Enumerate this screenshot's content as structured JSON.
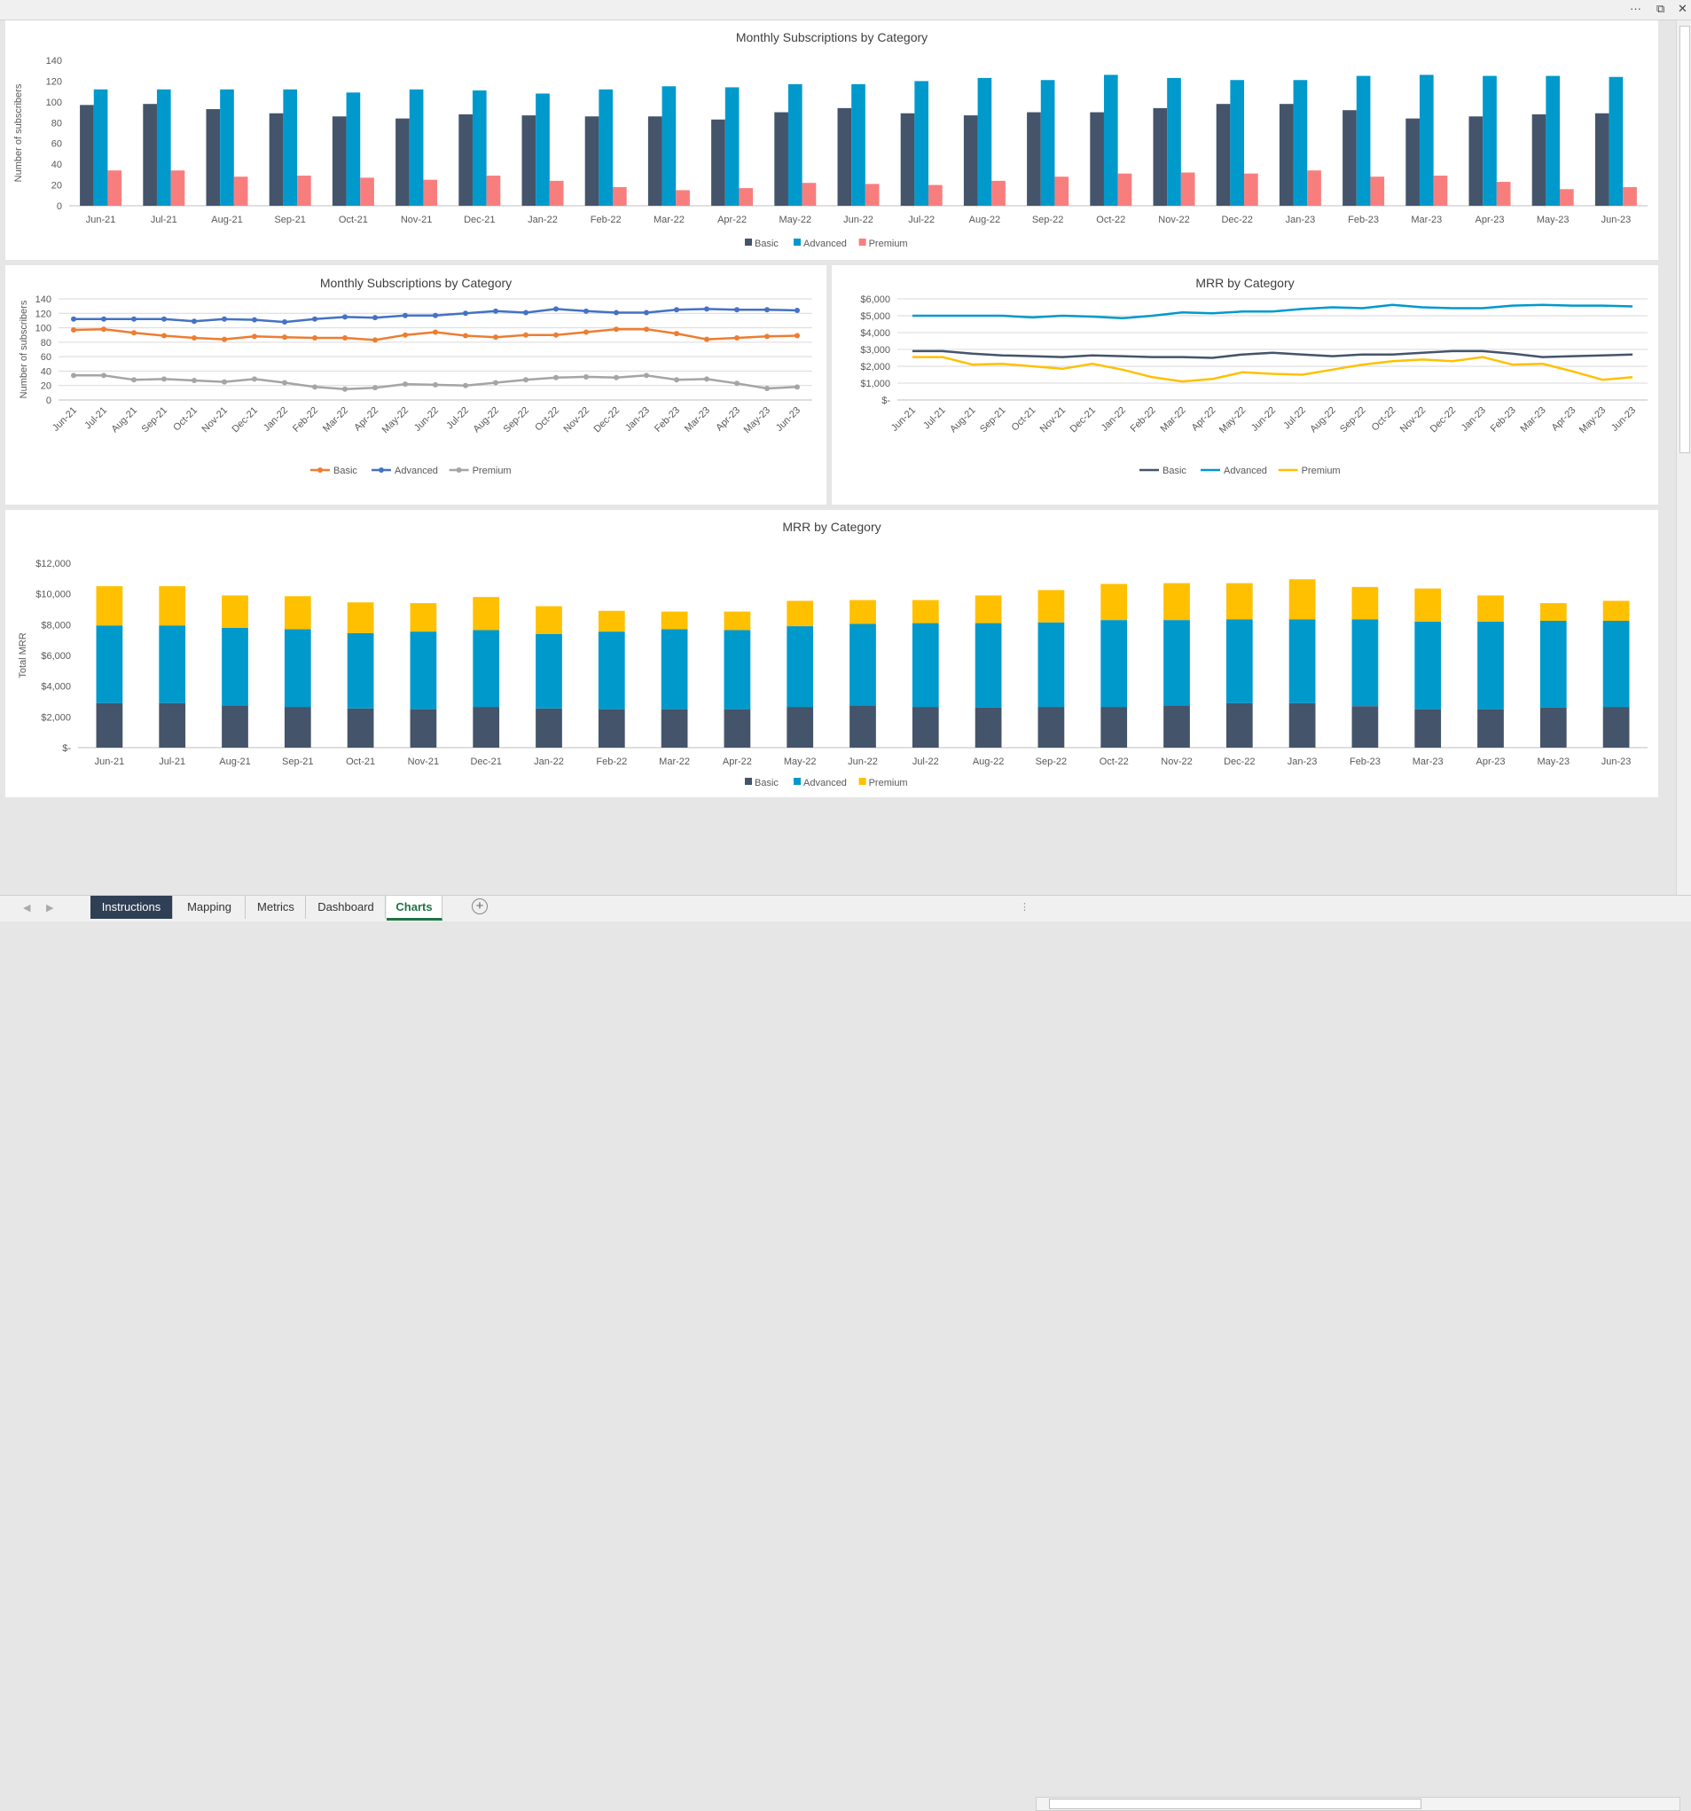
{
  "window": {
    "more_label": "···",
    "restore_label": "⧉",
    "close_label": "✕"
  },
  "tabs": [
    {
      "label": "Instructions",
      "state": "dark"
    },
    {
      "label": "Mapping",
      "state": "normal"
    },
    {
      "label": "Metrics",
      "state": "normal"
    },
    {
      "label": "Dashboard",
      "state": "normal"
    },
    {
      "label": "Charts",
      "state": "active"
    }
  ],
  "add_sheet_label": "+",
  "colors": {
    "basic_dark": "#44546a",
    "advanced_blue": "#0099cc",
    "premium_pink": "#f87e7e",
    "basic_orange": "#ed7d31",
    "advanced_line": "#4472c4",
    "premium_gray": "#a5a5a5",
    "premium_gold": "#ffc000",
    "active_tab": "#217346",
    "dark_tab": "#2f3f56"
  },
  "chart_data": [
    {
      "type": "bar",
      "title": "Monthly Subscriptions by Category",
      "xlabel": "",
      "ylabel": "Number of subscribers",
      "ylim": [
        0,
        140
      ],
      "yticks": [
        "0",
        "20",
        "40",
        "60",
        "80",
        "100",
        "120",
        "140"
      ],
      "categories": [
        "Jun-21",
        "Jul-21",
        "Aug-21",
        "Sep-21",
        "Oct-21",
        "Nov-21",
        "Dec-21",
        "Jan-22",
        "Feb-22",
        "Mar-22",
        "Apr-22",
        "May-22",
        "Jun-22",
        "Jul-22",
        "Aug-22",
        "Sep-22",
        "Oct-22",
        "Nov-22",
        "Dec-22",
        "Jan-23",
        "Feb-23",
        "Mar-23",
        "Apr-23",
        "May-23",
        "Jun-23"
      ],
      "series": [
        {
          "name": "Basic",
          "color": "#44546a",
          "values": [
            97,
            98,
            93,
            89,
            86,
            84,
            88,
            87,
            86,
            86,
            83,
            90,
            94,
            89,
            87,
            90,
            90,
            94,
            98,
            98,
            92,
            84,
            86,
            88,
            89
          ]
        },
        {
          "name": "Advanced",
          "color": "#0099cc",
          "values": [
            112,
            112,
            112,
            112,
            109,
            112,
            111,
            108,
            112,
            115,
            114,
            117,
            117,
            120,
            123,
            121,
            126,
            123,
            121,
            121,
            125,
            126,
            125,
            125,
            124
          ]
        },
        {
          "name": "Premium",
          "color": "#f87e7e",
          "values": [
            34,
            34,
            28,
            29,
            27,
            25,
            29,
            24,
            18,
            15,
            17,
            22,
            21,
            20,
            24,
            28,
            31,
            32,
            31,
            34,
            28,
            29,
            23,
            16,
            18
          ]
        }
      ],
      "legend": "bottom",
      "grid": false
    },
    {
      "type": "line",
      "title": "Monthly Subscriptions by Category",
      "xlabel": "",
      "ylabel": "Number of subscribers",
      "ylim": [
        0,
        140
      ],
      "yticks": [
        "0",
        "20",
        "40",
        "60",
        "80",
        "100",
        "120",
        "140"
      ],
      "categories": [
        "Jun-21",
        "Jul-21",
        "Aug-21",
        "Sep-21",
        "Oct-21",
        "Nov-21",
        "Dec-21",
        "Jan-22",
        "Feb-22",
        "Mar-22",
        "Apr-22",
        "May-22",
        "Jun-22",
        "Jul-22",
        "Aug-22",
        "Sep-22",
        "Oct-22",
        "Nov-22",
        "Dec-22",
        "Jan-23",
        "Feb-23",
        "Mar-23",
        "Apr-23",
        "May-23",
        "Jun-23"
      ],
      "markers": true,
      "series": [
        {
          "name": "Basic",
          "color": "#ed7d31",
          "values": [
            97,
            98,
            93,
            89,
            86,
            84,
            88,
            87,
            86,
            86,
            83,
            90,
            94,
            89,
            87,
            90,
            90,
            94,
            98,
            98,
            92,
            84,
            86,
            88,
            89
          ]
        },
        {
          "name": "Advanced",
          "color": "#4472c4",
          "values": [
            112,
            112,
            112,
            112,
            109,
            112,
            111,
            108,
            112,
            115,
            114,
            117,
            117,
            120,
            123,
            121,
            126,
            123,
            121,
            121,
            125,
            126,
            125,
            125,
            124
          ]
        },
        {
          "name": "Premium",
          "color": "#a5a5a5",
          "values": [
            34,
            34,
            28,
            29,
            27,
            25,
            29,
            24,
            18,
            15,
            17,
            22,
            21,
            20,
            24,
            28,
            31,
            32,
            31,
            34,
            28,
            29,
            23,
            16,
            18
          ]
        }
      ],
      "legend": "bottom",
      "grid": true
    },
    {
      "type": "line",
      "title": "MRR by Category",
      "xlabel": "",
      "ylabel": "",
      "ylim": [
        0,
        6000
      ],
      "yticks": [
        "$-",
        "$1,000",
        "$2,000",
        "$3,000",
        "$4,000",
        "$5,000",
        "$6,000"
      ],
      "categories": [
        "Jun-21",
        "Jul-21",
        "Aug-21",
        "Sep-21",
        "Oct-21",
        "Nov-21",
        "Dec-21",
        "Jan-22",
        "Feb-22",
        "Mar-22",
        "Apr-22",
        "May-22",
        "Jun-22",
        "Jul-22",
        "Aug-22",
        "Sep-22",
        "Oct-22",
        "Nov-22",
        "Dec-22",
        "Jan-23",
        "Feb-23",
        "Mar-23",
        "Apr-23",
        "May-23",
        "Jun-23"
      ],
      "markers": false,
      "series": [
        {
          "name": "Basic",
          "color": "#44546a",
          "values": [
            2900,
            2900,
            2750,
            2650,
            2600,
            2550,
            2650,
            2600,
            2550,
            2550,
            2500,
            2700,
            2800,
            2700,
            2600,
            2700,
            2700,
            2800,
            2900,
            2900,
            2750,
            2550,
            2600,
            2650,
            2700
          ]
        },
        {
          "name": "Advanced",
          "color": "#0099cc",
          "values": [
            5000,
            5000,
            5000,
            5000,
            4900,
            5000,
            4950,
            4850,
            5000,
            5200,
            5150,
            5250,
            5250,
            5400,
            5500,
            5450,
            5650,
            5500,
            5450,
            5450,
            5600,
            5650,
            5600,
            5600,
            5550
          ]
        },
        {
          "name": "Premium",
          "color": "#ffc000",
          "values": [
            2550,
            2550,
            2100,
            2150,
            2000,
            1850,
            2150,
            1800,
            1350,
            1100,
            1250,
            1650,
            1550,
            1500,
            1800,
            2100,
            2300,
            2400,
            2300,
            2550,
            2100,
            2150,
            1700,
            1200,
            1350
          ]
        }
      ],
      "legend": "bottom",
      "grid": true
    },
    {
      "type": "bar",
      "stacked": true,
      "title": "MRR by Category",
      "xlabel": "",
      "ylabel": "Total MRR",
      "ylim": [
        0,
        12000
      ],
      "yticks": [
        "$-",
        "$2,000",
        "$4,000",
        "$6,000",
        "$8,000",
        "$10,000",
        "$12,000"
      ],
      "categories": [
        "Jun-21",
        "Jul-21",
        "Aug-21",
        "Sep-21",
        "Oct-21",
        "Nov-21",
        "Dec-21",
        "Jan-22",
        "Feb-22",
        "Mar-22",
        "Apr-22",
        "May-22",
        "Jun-22",
        "Jul-22",
        "Aug-22",
        "Sep-22",
        "Oct-22",
        "Nov-22",
        "Dec-22",
        "Jan-23",
        "Feb-23",
        "Mar-23",
        "Apr-23",
        "May-23",
        "Jun-23"
      ],
      "series": [
        {
          "name": "Basic",
          "color": "#44546a",
          "values": [
            2900,
            2900,
            2750,
            2650,
            2550,
            2500,
            2650,
            2550,
            2500,
            2500,
            2500,
            2650,
            2750,
            2650,
            2600,
            2650,
            2650,
            2750,
            2900,
            2900,
            2700,
            2500,
            2500,
            2600,
            2650
          ]
        },
        {
          "name": "Advanced",
          "color": "#0099cc",
          "values": [
            5050,
            5050,
            5050,
            5050,
            4900,
            5050,
            5000,
            4850,
            5050,
            5200,
            5150,
            5250,
            5300,
            5450,
            5500,
            5500,
            5650,
            5550,
            5450,
            5450,
            5650,
            5700,
            5700,
            5650,
            5600
          ]
        },
        {
          "name": "Premium",
          "color": "#ffc000",
          "values": [
            2550,
            2550,
            2100,
            2150,
            2000,
            1850,
            2150,
            1800,
            1350,
            1150,
            1200,
            1650,
            1550,
            1500,
            1800,
            2100,
            2350,
            2400,
            2350,
            2600,
            2100,
            2150,
            1700,
            1150,
            1300
          ]
        }
      ],
      "legend": "bottom",
      "grid": false
    }
  ]
}
